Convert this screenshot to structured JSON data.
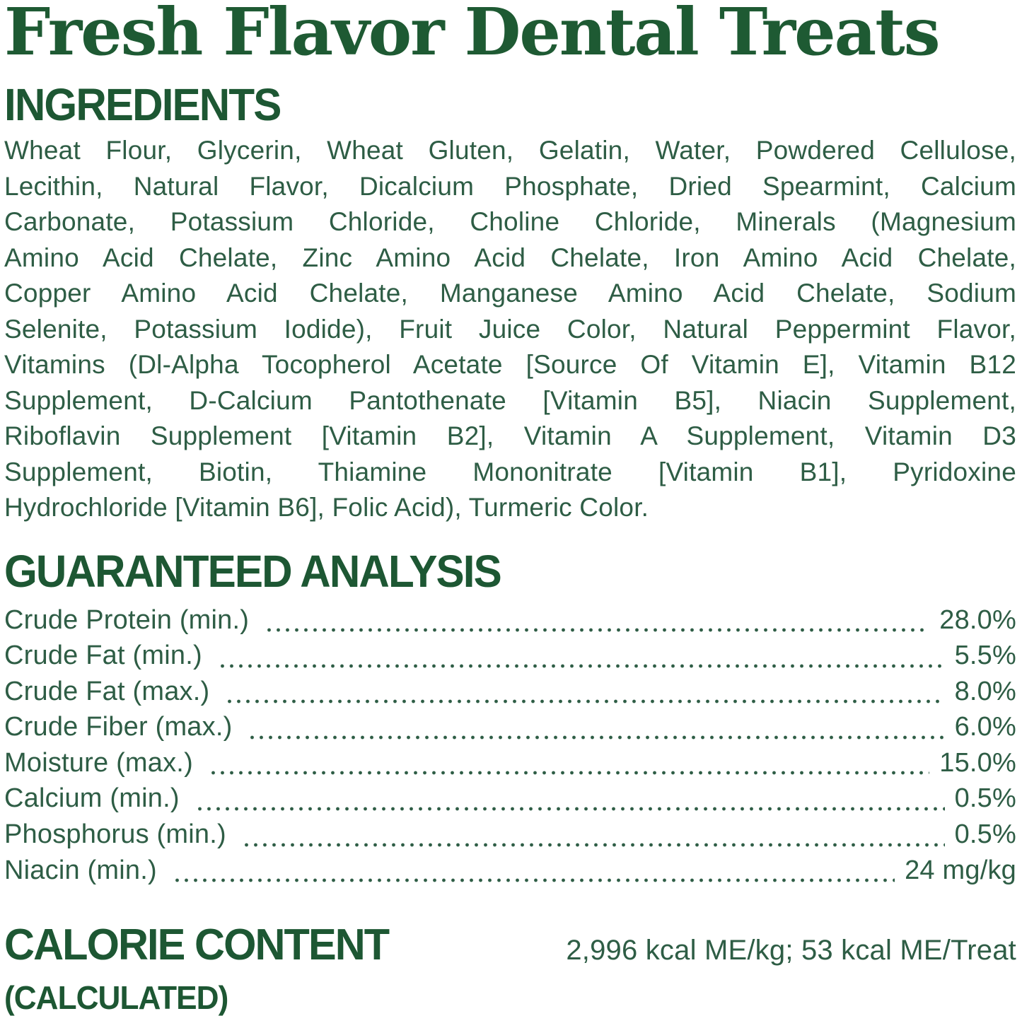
{
  "colors": {
    "background": "#ffffff",
    "title_green": "#1e5a33",
    "heading_green": "#1d5733",
    "body_green": "#2e5d45"
  },
  "page": {
    "title": "Fresh Flavor Dental Treats"
  },
  "ingredients": {
    "heading": "INGREDIENTS",
    "lines": [
      "Wheat Flour, Glycerin, Wheat Gluten, Gelatin, Water, Powdered Cellulose,",
      "Lecithin, Natural Flavor, Dicalcium Phosphate, Dried Spearmint, Calcium",
      "Carbonate, Potassium Chloride, Choline Chloride, Minerals (Magnesium",
      "Amino Acid Chelate, Zinc Amino Acid Chelate, Iron Amino Acid Chelate,",
      "Copper Amino Acid Chelate, Manganese Amino Acid Chelate, Sodium",
      "Selenite, Potassium Iodide), Fruit Juice Color, Natural Peppermint Flavor,",
      "Vitamins (Dl-Alpha Tocopherol Acetate [Source Of Vitamin E], Vitamin B12",
      "Supplement, D-Calcium Pantothenate [Vitamin B5], Niacin Supplement,",
      "Riboflavin Supplement [Vitamin B2], Vitamin A Supplement, Vitamin D3",
      "Supplement, Biotin, Thiamine Mononitrate [Vitamin B1], Pyridoxine",
      "Hydrochloride [Vitamin B6], Folic Acid), Turmeric Color."
    ]
  },
  "guaranteed_analysis": {
    "heading": "GUARANTEED ANALYSIS",
    "rows": [
      {
        "label": "Crude Protein (min.)",
        "value": "28.0%"
      },
      {
        "label": "Crude Fat (min.)",
        "value": "5.5%"
      },
      {
        "label": "Crude Fat (max.)",
        "value": "8.0%"
      },
      {
        "label": "Crude Fiber (max.)",
        "value": "6.0%"
      },
      {
        "label": "Moisture (max.)",
        "value": "15.0%"
      },
      {
        "label": "Calcium (min.)",
        "value": "0.5%"
      },
      {
        "label": "Phosphorus (min.)",
        "value": "0.5%"
      },
      {
        "label": "Niacin (min.)",
        "value": "24 mg/kg"
      }
    ]
  },
  "calorie_content": {
    "heading_line1": "CALORIE CONTENT",
    "heading_line2": "(CALCULATED)",
    "value": "2,996 kcal ME/kg; 53 kcal ME/Treat"
  }
}
